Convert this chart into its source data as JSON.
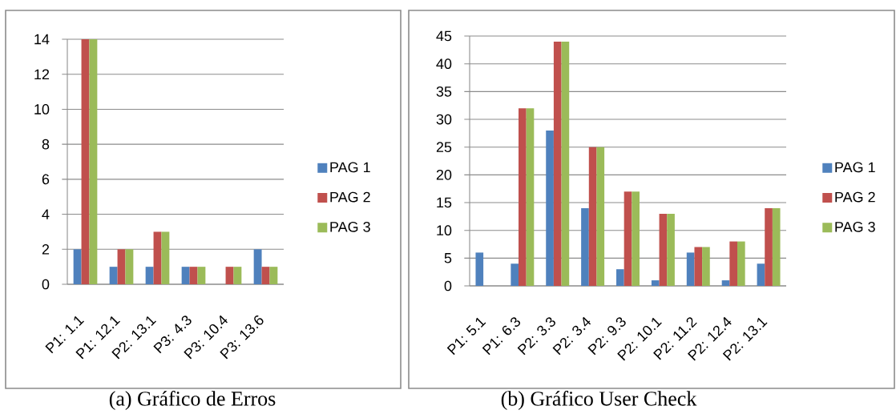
{
  "chart_data": [
    {
      "type": "bar",
      "title": "(a) Gráfico de Erros",
      "categories": [
        "P1: 1.1",
        "P1: 12.1",
        "P2: 13.1",
        "P3: 4.3",
        "P3: 10.4",
        "P3: 13.6"
      ],
      "series": [
        {
          "name": "PAG 1",
          "color": "#4f81bd",
          "values": [
            2,
            1,
            1,
            1,
            0,
            2
          ]
        },
        {
          "name": "PAG 2",
          "color": "#c0504d",
          "values": [
            14,
            2,
            3,
            1,
            1,
            1
          ]
        },
        {
          "name": "PAG 3",
          "color": "#9bbb59",
          "values": [
            14,
            2,
            3,
            1,
            1,
            1
          ]
        }
      ],
      "ylim": [
        0,
        14
      ],
      "yticks": [
        0,
        2,
        4,
        6,
        8,
        10,
        12,
        14
      ],
      "grid": "y",
      "legend": "right"
    },
    {
      "type": "bar",
      "title": "(b) Gráfico User Check",
      "categories": [
        "P1: 5.1",
        "P1: 6.3",
        "P2: 3.3",
        "P2: 3.4",
        "P2: 9.3",
        "P2: 10.1",
        "P2: 11.2",
        "P2: 12.4",
        "P2: 13.1"
      ],
      "series": [
        {
          "name": "PAG 1",
          "color": "#4f81bd",
          "values": [
            6,
            4,
            28,
            14,
            3,
            1,
            6,
            1,
            4
          ]
        },
        {
          "name": "PAG 2",
          "color": "#c0504d",
          "values": [
            0,
            32,
            44,
            25,
            17,
            13,
            7,
            8,
            14
          ]
        },
        {
          "name": "PAG 3",
          "color": "#9bbb59",
          "values": [
            0,
            32,
            44,
            25,
            17,
            13,
            7,
            8,
            14
          ]
        }
      ],
      "ylim": [
        0,
        45
      ],
      "yticks": [
        0,
        5,
        10,
        15,
        20,
        25,
        30,
        35,
        40,
        45
      ],
      "grid": "y",
      "legend": "right"
    }
  ]
}
